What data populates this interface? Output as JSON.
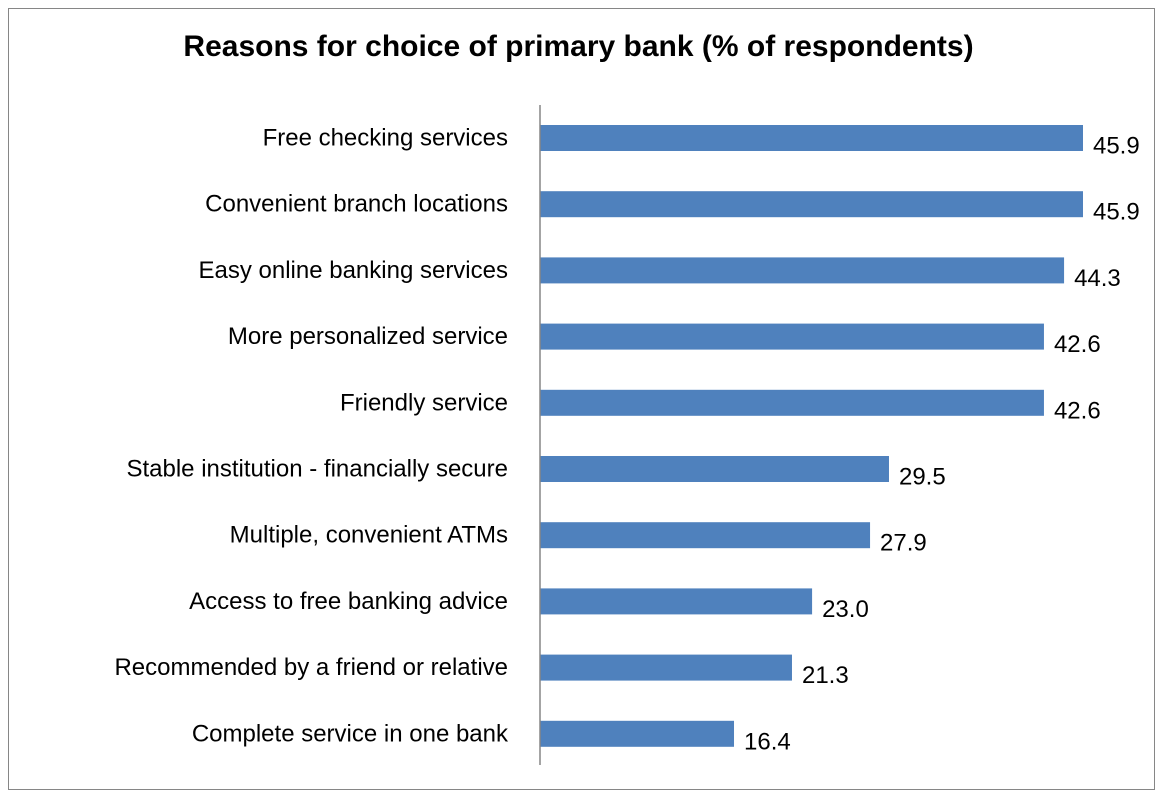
{
  "chart_data": {
    "type": "bar",
    "orientation": "horizontal",
    "title": "Reasons for choice of primary bank (% of respondents)",
    "xlabel": "",
    "ylabel": "",
    "categories": [
      "Free checking services",
      "Convenient branch locations",
      "Easy online banking services",
      "More personalized service",
      "Friendly service",
      "Stable institution - financially secure",
      "Multiple, convenient ATMs",
      "Access to free banking advice",
      "Recommended by a friend or relative",
      "Complete service in one bank"
    ],
    "values": [
      45.9,
      45.9,
      44.3,
      42.6,
      42.6,
      29.5,
      27.9,
      23.0,
      21.3,
      16.4
    ],
    "value_labels": [
      "45.9",
      "45.9",
      "44.3",
      "42.6",
      "42.6",
      "29.5",
      "27.9",
      "23.0",
      "21.3",
      "16.4"
    ],
    "xlim": [
      0,
      50
    ],
    "grid": false,
    "legend": "none",
    "bar_color": "#4F81BD",
    "axis_color": "#868686"
  }
}
